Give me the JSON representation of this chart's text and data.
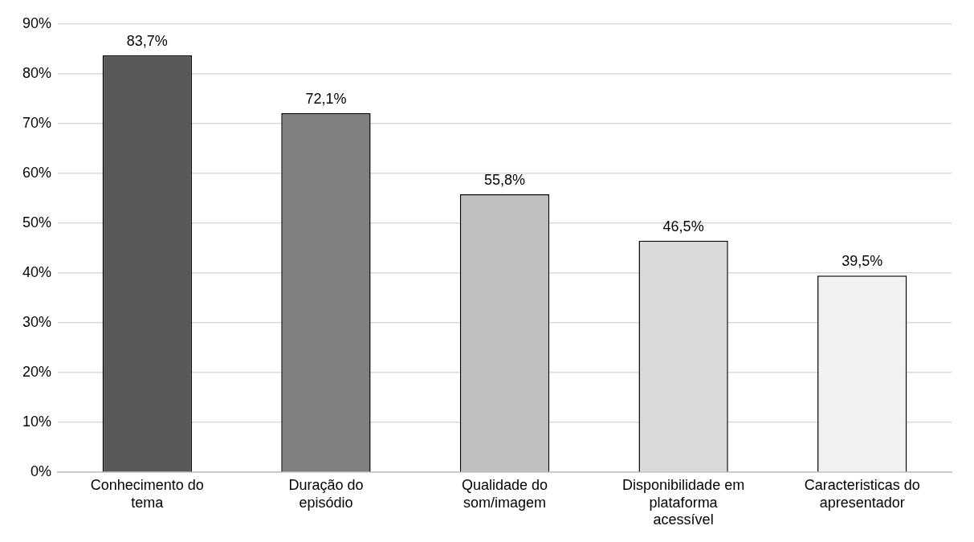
{
  "chart_data": {
    "type": "bar",
    "categories": [
      "Conhecimento do tema",
      "Duração do episódio",
      "Qualidade do som/imagem",
      "Disponibilidade em plataforma acessível",
      "Caracteristicas do apresentador"
    ],
    "values": [
      83.7,
      72.1,
      55.8,
      46.5,
      39.5
    ],
    "colors": [
      "#595959",
      "#808080",
      "#bfbfbf",
      "#d9d9d9",
      "#f2f2f2"
    ],
    "value_labels": [
      "83,7%",
      "72,1%",
      "55,8%",
      "46,5%",
      "39,5%"
    ],
    "ylim": [
      0,
      90
    ],
    "yticks": [
      {
        "value": 0,
        "label": "0%"
      },
      {
        "value": 10,
        "label": "10%"
      },
      {
        "value": 20,
        "label": "20%"
      },
      {
        "value": 30,
        "label": "30%"
      },
      {
        "value": 40,
        "label": "40%"
      },
      {
        "value": 50,
        "label": "50%"
      },
      {
        "value": 60,
        "label": "60%"
      },
      {
        "value": 70,
        "label": "70%"
      },
      {
        "value": 80,
        "label": "80%"
      },
      {
        "value": 90,
        "label": "90%"
      }
    ],
    "grid": "y",
    "legend": false
  }
}
